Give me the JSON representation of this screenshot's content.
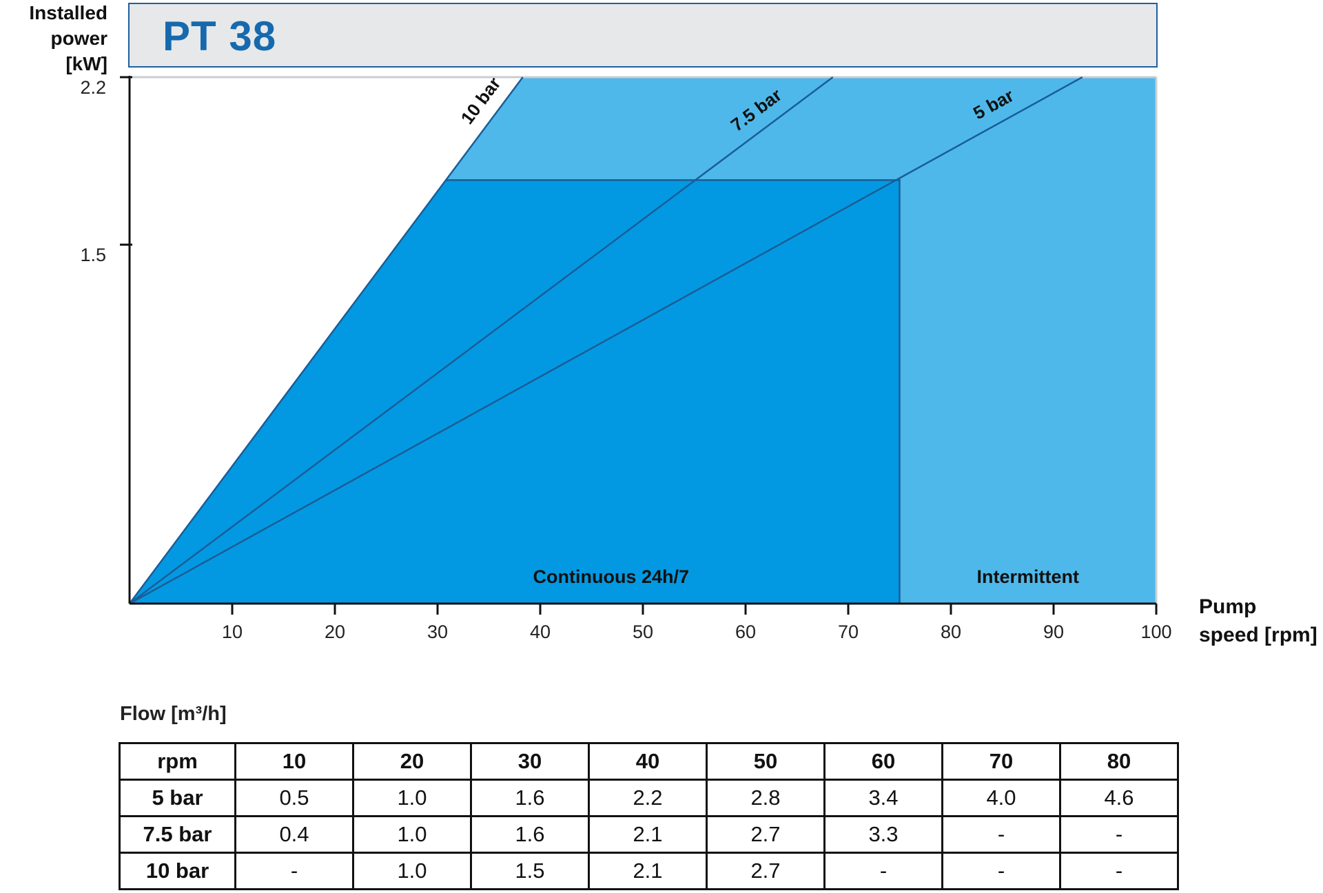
{
  "title": "PT 38",
  "ylabel": [
    "Installed",
    "power",
    "[kW]"
  ],
  "xlabel": [
    "Pump",
    "speed [rpm]"
  ],
  "flow_label": "Flow [m³/h]",
  "colors": {
    "continuous": "#0399e2",
    "intermittent": "#4eb8ea",
    "line": "#1a5d96",
    "title_text": "#1769ad",
    "title_border": "#1f5fa0",
    "title_bg": "#e6e8ea"
  },
  "chart_data": {
    "type": "area",
    "title": "PT 38",
    "xlabel": "Pump speed [rpm]",
    "ylabel": "Installed power [kW]",
    "xlim": [
      0,
      100
    ],
    "ylim": [
      0,
      2.2
    ],
    "x_ticks": [
      "10",
      "20",
      "30",
      "40",
      "50",
      "60",
      "70",
      "80",
      "90",
      "100"
    ],
    "y_ticks": [
      "1.5",
      "2.2"
    ],
    "series": [
      {
        "name": "10 bar",
        "x": [
          0,
          38.3
        ],
        "y": [
          0,
          2.2
        ]
      },
      {
        "name": "7.5 bar",
        "x": [
          0,
          68.5
        ],
        "y": [
          0,
          2.2
        ]
      },
      {
        "name": "5 bar",
        "x": [
          0,
          92.8
        ],
        "y": [
          0,
          2.2
        ]
      }
    ],
    "regions": [
      {
        "label": "Continuous 24h/7",
        "max_speed_rpm": 75,
        "max_power_kw": 1.77
      },
      {
        "label": "Intermittent",
        "max_speed_rpm": 100,
        "max_power_kw": 2.2
      }
    ]
  },
  "flow_table": {
    "header": [
      "rpm",
      "10",
      "20",
      "30",
      "40",
      "50",
      "60",
      "70",
      "80"
    ],
    "rows": [
      [
        "5 bar",
        "0.5",
        "1.0",
        "1.6",
        "2.2",
        "2.8",
        "3.4",
        "4.0",
        "4.6"
      ],
      [
        "7.5 bar",
        "0.4",
        "1.0",
        "1.6",
        "2.1",
        "2.7",
        "3.3",
        "-",
        "-"
      ],
      [
        "10 bar",
        "-",
        "1.0",
        "1.5",
        "2.1",
        "2.7",
        "-",
        "-",
        "-"
      ]
    ]
  }
}
